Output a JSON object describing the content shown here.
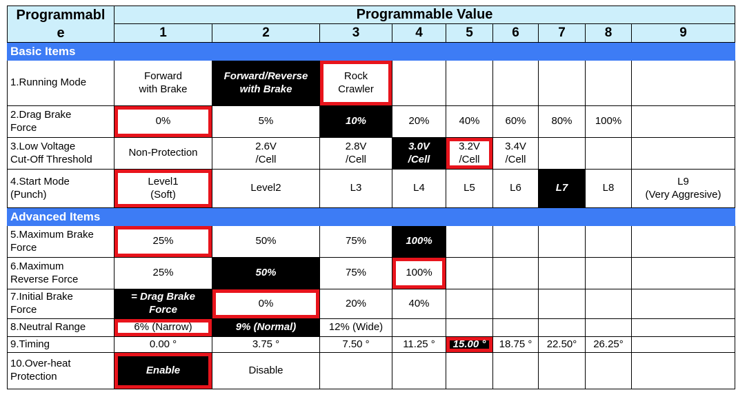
{
  "header": {
    "programmable": "Programmable",
    "programmable_value": "Programmable Value",
    "columns": [
      "1",
      "2",
      "3",
      "4",
      "5",
      "6",
      "7",
      "8",
      "9"
    ]
  },
  "sections": {
    "basic": "Basic Items",
    "advanced": "Advanced Items"
  },
  "rows": [
    {
      "label": "1.Running Mode",
      "values": [
        "Forward\nwith Brake",
        "Forward/Reverse\nwith Brake",
        "Rock\nCrawler",
        "",
        "",
        "",
        "",
        "",
        ""
      ]
    },
    {
      "label": "2.Drag Brake\nForce",
      "values": [
        "0%",
        "5%",
        "10%",
        "20%",
        "40%",
        "60%",
        "80%",
        "100%",
        ""
      ]
    },
    {
      "label": "3.Low Voltage\nCut-Off Threshold",
      "values": [
        "Non-Protection",
        "2.6V\n/Cell",
        "2.8V\n/Cell",
        "3.0V\n/Cell",
        "3.2V\n/Cell",
        "3.4V\n/Cell",
        "",
        "",
        ""
      ]
    },
    {
      "label": "4.Start Mode\n(Punch)",
      "values": [
        "Level1\n(Soft)",
        "Level2",
        "L3",
        "L4",
        "L5",
        "L6",
        "L7",
        "L8",
        "L9\n(Very Aggresive)"
      ]
    },
    {
      "label": "5.Maximum Brake\nForce",
      "values": [
        "25%",
        "50%",
        "75%",
        "100%",
        "",
        "",
        "",
        "",
        ""
      ]
    },
    {
      "label": "6.Maximum\nReverse Force",
      "values": [
        "25%",
        "50%",
        "75%",
        "100%",
        "",
        "",
        "",
        "",
        ""
      ]
    },
    {
      "label": "7.Initial Brake\nForce",
      "values": [
        "= Drag Brake\nForce",
        "0%",
        "20%",
        "40%",
        "",
        "",
        "",
        "",
        ""
      ]
    },
    {
      "label": "8.Neutral Range",
      "values": [
        "6% (Narrow)",
        "9% (Normal)",
        "12% (Wide)",
        "",
        "",
        "",
        "",
        "",
        ""
      ]
    },
    {
      "label": "9.Timing",
      "values": [
        "0.00 °",
        "3.75 °",
        "7.50 °",
        "11.25 °",
        "15.00 °",
        "18.75 °",
        "22.50°",
        "26.25°",
        ""
      ]
    },
    {
      "label": "10.Over-heat\nProtection",
      "values": [
        "Enable",
        "Disable",
        "",
        "",
        "",
        "",
        "",
        "",
        ""
      ]
    }
  ],
  "colors": {
    "header_bg": "#cdeffb",
    "section_bg": "#3d7cf5",
    "default_bg": "#000000",
    "highlight_border": "#e8141c"
  }
}
